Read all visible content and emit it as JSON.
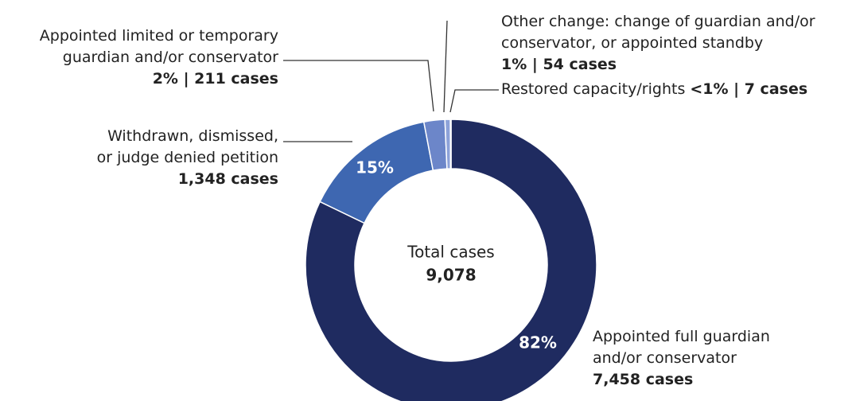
{
  "chart_data": {
    "type": "donut",
    "categories": [
      "Appointed full guardian\nand/or conservator",
      "Withdrawn, dismissed,\nor judge denied petition",
      "Appointed limited or temporary\nguardian and/or conservator",
      "Other change: change of guardian and/or\nconservator, or appointed standby",
      "Restored capacity/rights"
    ],
    "values": [
      7458,
      1348,
      211,
      54,
      7
    ],
    "value_labels": [
      "7,458 cases",
      "1,348 cases",
      "211 cases",
      "54 cases",
      "7 cases"
    ],
    "percent_labels": [
      "82%",
      "15%",
      "2%",
      "1%",
      "<1%"
    ],
    "separator": " | ",
    "colors": [
      "#1f2b60",
      "#3e67b1",
      "#6c86c9",
      "#8da2d9",
      "#aebce6"
    ],
    "center_label": "Total cases",
    "center_value": "9,078"
  }
}
